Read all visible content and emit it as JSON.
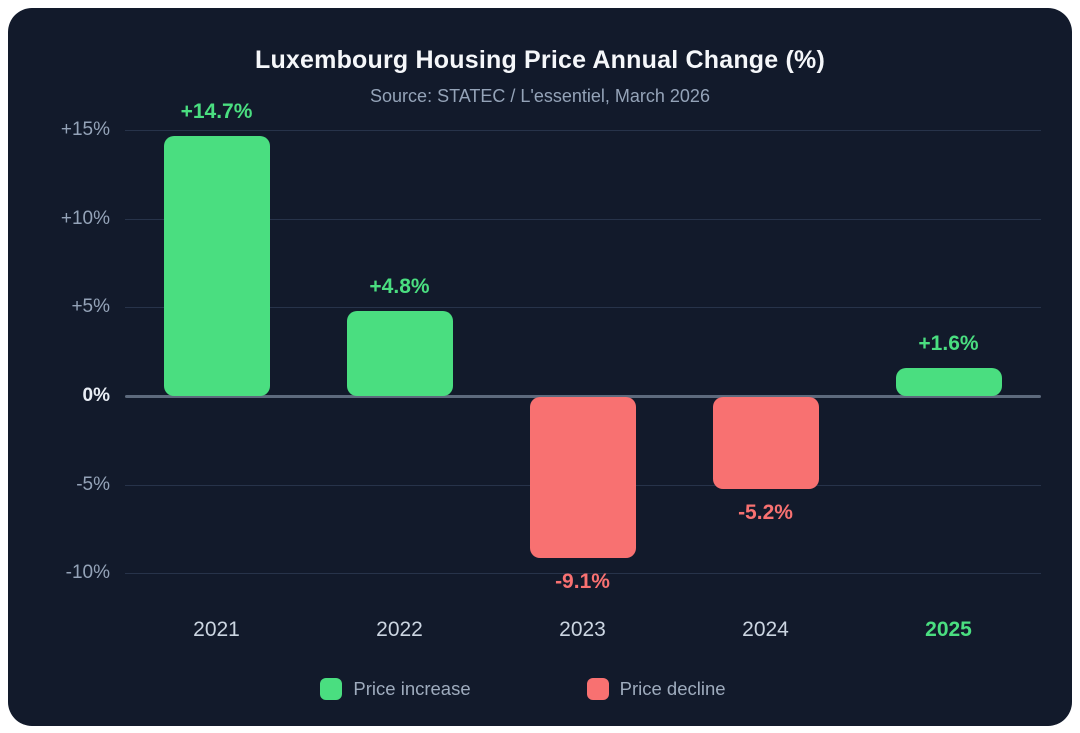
{
  "chart_data": {
    "type": "bar",
    "title": "Luxembourg Housing Price Annual Change (%)",
    "subtitle": "Source: STATEC / L'essentiel, March 2026",
    "categories": [
      "2021",
      "2022",
      "2023",
      "2024",
      "2025"
    ],
    "values": [
      14.7,
      4.8,
      -9.1,
      -5.2,
      1.6
    ],
    "bar_labels": [
      "+14.7%",
      "+4.8%",
      "-9.1%",
      "-5.2%",
      "+1.6%"
    ],
    "highlighted_category": "2025",
    "xlabel": "",
    "ylabel": "",
    "ylim": [
      -12.6,
      16.4
    ],
    "grid": "horizontal",
    "yticks": [
      {
        "value": 15,
        "label": "+15%"
      },
      {
        "value": 10,
        "label": "+10%"
      },
      {
        "value": 5,
        "label": "+5%"
      },
      {
        "value": 0,
        "label": "0%"
      },
      {
        "value": -5,
        "label": "-5%"
      },
      {
        "value": -10,
        "label": "-10%"
      }
    ],
    "legend": {
      "position": "bottom",
      "items": [
        {
          "label": "Price increase",
          "type": "increase"
        },
        {
          "label": "Price decline",
          "type": "decline"
        }
      ]
    },
    "colors": {
      "increase": "#4ade80",
      "decline": "#f87171",
      "card_background": "#121a2b",
      "page_background": "#ffffff",
      "title_text": "#f5f7fa",
      "subtitle_text": "#94a3b8",
      "axis_tick_text": "#94a3b8",
      "zero_tick_text": "#e8edf4",
      "year_tick_text": "#cbd5e1",
      "gridline": "#27334a",
      "zero_line": "#5d6a7d",
      "legend_text": "#9eabbd"
    }
  }
}
